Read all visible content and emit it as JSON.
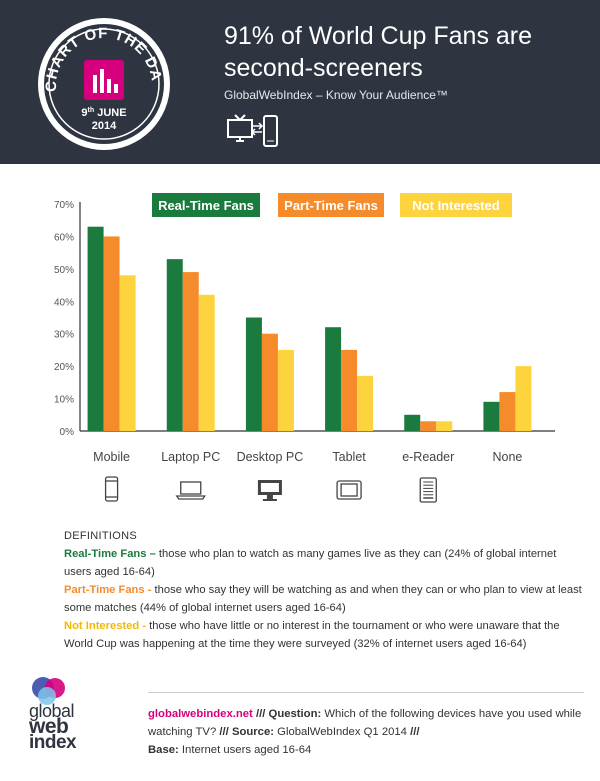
{
  "header": {
    "badge_top": "CHART OF THE DAY",
    "badge_date_day": "9",
    "badge_date_suffix": "th",
    "badge_date_month": "JUNE",
    "badge_year": "2014",
    "title_line1": "91% of World Cup Fans are",
    "title_line2": "second-screeners",
    "subtitle": "GlobalWebIndex – Know Your Audience™",
    "icon": "tv-and-phone-icon"
  },
  "colors": {
    "header_bg": "#2e3440",
    "real_time": "#1b7a3e",
    "part_time": "#f68b2c",
    "not_interested": "#fdd33e",
    "brand_pink": "#d6007e"
  },
  "chart_data": {
    "type": "bar",
    "categories": [
      "Mobile",
      "Laptop PC",
      "Desktop PC",
      "Tablet",
      "e-Reader",
      "None"
    ],
    "category_icons": [
      "mobile-icon",
      "laptop-icon",
      "desktop-icon",
      "tablet-icon",
      "ereader-icon",
      ""
    ],
    "series": [
      {
        "name": "Real-Time Fans",
        "color": "#1b7a3e",
        "values": [
          63,
          53,
          35,
          32,
          5,
          9
        ]
      },
      {
        "name": "Part-Time Fans",
        "color": "#f68b2c",
        "values": [
          60,
          49,
          30,
          25,
          3,
          12
        ]
      },
      {
        "name": "Not Interested",
        "color": "#fdd33e",
        "values": [
          48,
          42,
          25,
          17,
          3,
          20
        ]
      }
    ],
    "yticks": [
      "0%",
      "10%",
      "20%",
      "30%",
      "40%",
      "50%",
      "60%",
      "70%"
    ],
    "ylim": [
      0,
      70
    ],
    "legend": "top",
    "grid": false
  },
  "definitions": {
    "heading": "DEFINITIONS",
    "items": [
      {
        "term": "Real-Time Fans –",
        "text": " those who plan to watch as many games live as they can (24% of global internet users aged 16-64)"
      },
      {
        "term": "Part-Time Fans -",
        "text": " those who say they will be watching as and when they can or who plan to view at least some matches (44% of global internet users aged 16-64)"
      },
      {
        "term": "Not Interested -",
        "text": " those who have little or no interest in the tournament or who were unaware that the World Cup was happening at the time they were surveyed (32% of internet users aged 16-64)"
      }
    ]
  },
  "logo": {
    "line1": "global",
    "line2": "web",
    "line3": "index"
  },
  "footer": {
    "site": "globalwebindex.net",
    "sep1": " /// ",
    "question_label": "Question:",
    "question": " Which of the following devices have you used while watching TV? ",
    "sep2": " /// ",
    "source_label": "Source:",
    "source": " GlobalWebIndex Q1 2014 ",
    "sep3": "///",
    "base_label": "Base:",
    "base": " Internet users aged 16-64"
  }
}
